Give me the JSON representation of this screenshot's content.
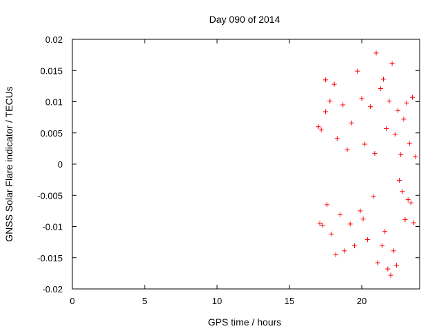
{
  "chart_data": {
    "type": "scatter",
    "title": "Day 090 of 2014",
    "xlabel": "GPS time / hours",
    "ylabel": "GNSS Solar Flare indicator / TECUs",
    "xlim": [
      0,
      24
    ],
    "ylim": [
      -0.02,
      0.02
    ],
    "x_ticks": [
      "0",
      "5",
      "10",
      "15",
      "20"
    ],
    "y_ticks": [
      "0.02",
      "0.015",
      "0.01",
      "0.005",
      "0",
      "-0.005",
      "-0.01",
      "-0.015",
      "-0.02"
    ],
    "marker": "+",
    "color": "#ff0000",
    "grid": false,
    "series": [
      {
        "x": [
          17.0,
          17.1,
          17.2,
          17.3,
          17.5,
          17.5,
          17.6,
          17.8,
          17.9,
          18.1,
          18.2,
          18.3,
          18.5,
          18.7,
          18.8,
          19.0,
          19.2,
          19.3,
          19.5,
          19.7,
          19.9,
          20.0,
          20.1,
          20.2,
          20.4,
          20.6,
          20.8,
          20.9,
          21.0,
          21.1,
          21.3,
          21.4,
          21.5,
          21.6,
          21.7,
          21.8,
          21.9,
          22.0,
          22.1,
          22.2,
          22.3,
          22.4,
          22.5,
          22.6,
          22.7,
          22.8,
          22.9,
          23.0,
          23.1,
          23.2,
          23.3,
          23.4,
          23.5,
          23.6,
          23.7
        ],
        "y": [
          0.006,
          -0.0095,
          0.0055,
          -0.0098,
          0.0135,
          0.0084,
          -0.0065,
          0.0101,
          -0.0112,
          0.0128,
          -0.0145,
          0.0041,
          -0.0081,
          0.0095,
          -0.0139,
          0.0023,
          -0.0096,
          0.0066,
          -0.0131,
          0.0149,
          -0.0075,
          0.0105,
          -0.0088,
          0.0032,
          -0.0121,
          0.0092,
          -0.0052,
          0.0017,
          0.0178,
          -0.0158,
          0.0121,
          -0.0131,
          0.0136,
          -0.0108,
          0.0057,
          -0.0168,
          0.0101,
          -0.0178,
          0.0161,
          -0.0139,
          0.0048,
          -0.0162,
          0.0086,
          -0.0026,
          0.0015,
          -0.0044,
          0.0072,
          -0.0089,
          0.0098,
          -0.0057,
          0.0033,
          -0.0062,
          0.0107,
          -0.0094,
          0.0012
        ]
      }
    ]
  }
}
